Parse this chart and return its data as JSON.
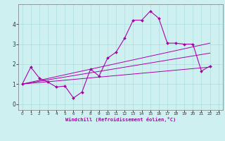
{
  "xlabel": "Windchill (Refroidissement éolien,°C)",
  "background_color": "#cff0f0",
  "line_color": "#aa00aa",
  "xlim": [
    -0.5,
    23.5
  ],
  "ylim": [
    -0.3,
    5.0
  ],
  "xticks": [
    0,
    1,
    2,
    3,
    4,
    5,
    6,
    7,
    8,
    9,
    10,
    11,
    12,
    13,
    14,
    15,
    16,
    17,
    18,
    19,
    20,
    21,
    22,
    23
  ],
  "yticks": [
    0,
    1,
    2,
    3,
    4
  ],
  "grid_color": "#aadddd",
  "line1_x": [
    0,
    1,
    2,
    3,
    4,
    5,
    6,
    7,
    8,
    9,
    10,
    11,
    12,
    13,
    14,
    15,
    16,
    17,
    18,
    19,
    20,
    21,
    22
  ],
  "line1_y": [
    1.0,
    1.85,
    1.3,
    1.1,
    0.85,
    0.9,
    0.3,
    0.6,
    1.75,
    1.4,
    2.3,
    2.6,
    3.3,
    4.2,
    4.2,
    4.65,
    4.3,
    3.05,
    3.05,
    3.0,
    3.0,
    1.65,
    1.9
  ],
  "trend1_x": [
    0,
    22
  ],
  "trend1_y": [
    1.0,
    3.05
  ],
  "trend2_x": [
    0,
    22
  ],
  "trend2_y": [
    1.0,
    2.55
  ],
  "trend3_x": [
    0,
    22
  ],
  "trend3_y": [
    1.0,
    1.85
  ]
}
